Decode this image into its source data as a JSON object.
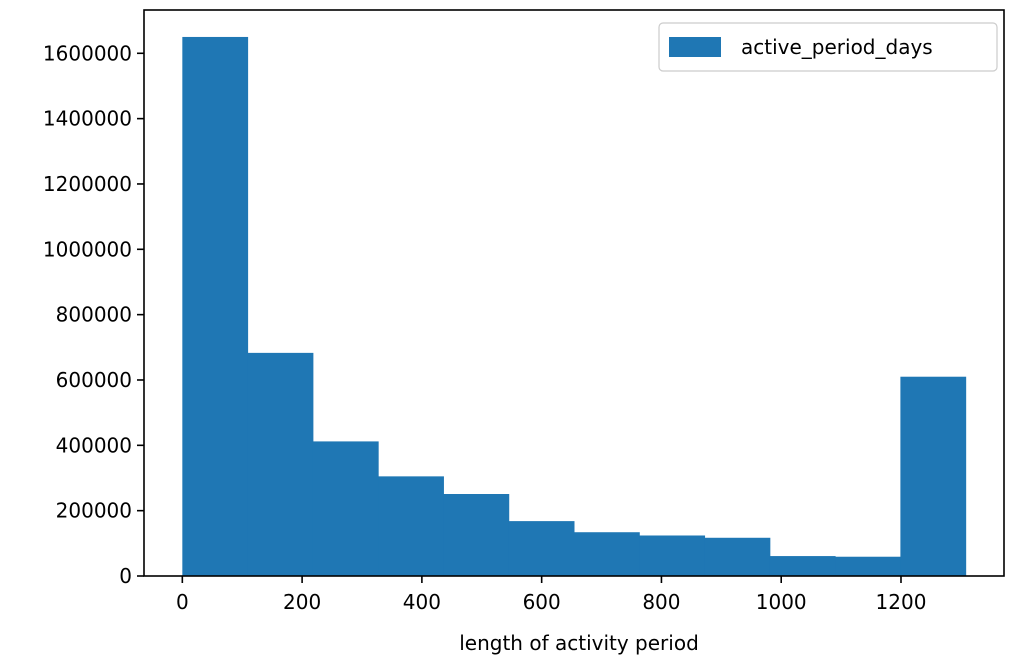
{
  "chart_data": {
    "type": "bar",
    "subtype": "histogram",
    "title": "",
    "xlabel": "length of activity period",
    "ylabel": "",
    "series": [
      {
        "name": "active_period_days",
        "color": "#1f77b4",
        "bin_edges": [
          0,
          109,
          218,
          327,
          436,
          545,
          654,
          763,
          872,
          981,
          1090,
          1199,
          1308
        ],
        "values": [
          1650000,
          683000,
          412000,
          305000,
          251000,
          168000,
          134000,
          124000,
          117000,
          61000,
          59000,
          610000
        ]
      }
    ],
    "xlim": [
      -64,
      1372
    ],
    "ylim": [
      0,
      1732500
    ],
    "xticks": [
      0,
      200,
      400,
      600,
      800,
      1000,
      1200
    ],
    "yticks": [
      0,
      200000,
      400000,
      600000,
      800000,
      1000000,
      1200000,
      1400000,
      1600000
    ],
    "xtick_labels": [
      "0",
      "200",
      "400",
      "600",
      "800",
      "1000",
      "1200"
    ],
    "ytick_labels": [
      "0",
      "200000",
      "400000",
      "600000",
      "800000",
      "1000000",
      "1200000",
      "1400000",
      "1600000"
    ],
    "legend": {
      "placement": "top-right",
      "entries": [
        "active_period_days"
      ]
    },
    "grid": false
  }
}
